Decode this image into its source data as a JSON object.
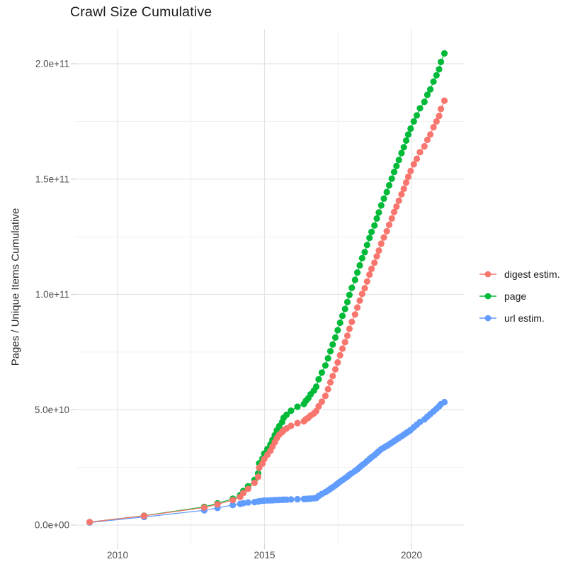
{
  "page": {
    "title": "Crawl Size Cumulative"
  },
  "chart_data": {
    "type": "line",
    "title": "Crawl Size Cumulative",
    "xlabel": "",
    "ylabel": "Pages / Unique Items Cumulative",
    "values_unit": "1e9",
    "grid": true,
    "legend_position": "right",
    "xlim": [
      2008.6,
      2021.8
    ],
    "ylim": [
      0,
      215
    ],
    "x_ticks": {
      "major": [
        2010,
        2015,
        2020
      ],
      "minor": [
        2012.5,
        2017.5
      ],
      "labels": [
        "2010",
        "2015",
        "2020"
      ]
    },
    "y_ticks": {
      "major": [
        0,
        50,
        100,
        150,
        200
      ],
      "minor": [
        25,
        75,
        125,
        175
      ],
      "labels": [
        "0.0e+00",
        "5.0e+10",
        "1.0e+11",
        "1.5e+11",
        "2.0e+11"
      ]
    },
    "x": [
      2009.05,
      2010.9,
      2012.95,
      2013.4,
      2013.92,
      2014.17,
      2014.28,
      2014.44,
      2014.66,
      2014.78,
      2014.82,
      2014.93,
      2014.99,
      2015.1,
      2015.2,
      2015.27,
      2015.35,
      2015.42,
      2015.5,
      2015.6,
      2015.65,
      2015.75,
      2015.9,
      2016.12,
      2016.34,
      2016.41,
      2016.49,
      2016.57,
      2016.68,
      2016.76,
      2016.84,
      2016.95,
      2017.07,
      2017.16,
      2017.24,
      2017.32,
      2017.41,
      2017.49,
      2017.57,
      2017.65,
      2017.74,
      2017.82,
      2017.89,
      2017.97,
      2018.08,
      2018.16,
      2018.24,
      2018.32,
      2018.41,
      2018.49,
      2018.57,
      2018.64,
      2018.74,
      2018.82,
      2018.89,
      2018.97,
      2019.06,
      2019.16,
      2019.24,
      2019.33,
      2019.41,
      2019.49,
      2019.57,
      2019.66,
      2019.74,
      2019.82,
      2019.89,
      2019.97,
      2020.08,
      2020.18,
      2020.29,
      2020.44,
      2020.54,
      2020.64,
      2020.75,
      2020.85,
      2020.94,
      2021.0,
      2021.12
    ],
    "series": [
      {
        "name": "digest estim.",
        "color": "#f8766d",
        "values": [
          1.3,
          4.0,
          7.6,
          9.0,
          10.8,
          12.2,
          13.9,
          15.7,
          18.3,
          20.9,
          24.9,
          26.7,
          28.7,
          30.5,
          32.2,
          34.0,
          35.9,
          37.7,
          39.2,
          40.3,
          41.1,
          41.9,
          43.0,
          44.2,
          45.0,
          45.9,
          46.5,
          47.5,
          48.4,
          49.4,
          51.5,
          53.5,
          56.0,
          58.9,
          61.9,
          64.6,
          67.5,
          70.5,
          73.6,
          76.5,
          79.3,
          82.1,
          85.1,
          88.1,
          91.3,
          94.3,
          97.3,
          100.2,
          102.7,
          105.6,
          108.6,
          111.1,
          113.7,
          116.5,
          119.0,
          122.0,
          124.7,
          127.4,
          130.2,
          132.9,
          135.7,
          138.1,
          140.6,
          143.4,
          145.8,
          148.5,
          151.0,
          153.5,
          156.4,
          158.8,
          161.7,
          164.2,
          167.0,
          169.3,
          172.5,
          175.0,
          177.4,
          180.4,
          184.0
        ]
      },
      {
        "name": "page",
        "color": "#00ba38",
        "values": [
          1.3,
          4.1,
          7.9,
          9.4,
          11.4,
          13.0,
          14.8,
          16.8,
          19.6,
          22.4,
          26.8,
          28.8,
          31.0,
          33.0,
          34.9,
          36.9,
          39.0,
          41.1,
          42.9,
          44.7,
          46.5,
          47.8,
          49.6,
          51.3,
          52.5,
          53.9,
          55.0,
          56.7,
          58.3,
          60.0,
          63.2,
          66.1,
          69.2,
          72.3,
          75.4,
          78.3,
          81.3,
          84.5,
          87.7,
          90.7,
          93.7,
          96.7,
          99.8,
          102.9,
          106.3,
          109.5,
          112.6,
          115.7,
          118.3,
          121.4,
          124.5,
          127.1,
          129.9,
          132.9,
          135.5,
          138.6,
          141.5,
          144.4,
          147.3,
          150.2,
          153.1,
          155.7,
          158.3,
          161.3,
          163.8,
          166.7,
          169.3,
          171.9,
          175.0,
          177.6,
          180.7,
          183.5,
          186.5,
          188.9,
          192.3,
          195.0,
          197.6,
          200.8,
          204.5
        ]
      },
      {
        "name": "url estim.",
        "color": "#619cff",
        "values": [
          1.1,
          3.5,
          6.4,
          7.4,
          8.7,
          9.2,
          9.5,
          9.8,
          10.0,
          10.2,
          10.35,
          10.5,
          10.6,
          10.65,
          10.7,
          10.75,
          10.8,
          10.85,
          10.9,
          10.95,
          11.0,
          11.0,
          11.1,
          11.2,
          11.3,
          11.35,
          11.4,
          11.5,
          11.6,
          11.7,
          12.6,
          13.5,
          14.3,
          15.0,
          15.7,
          16.4,
          17.2,
          18.0,
          18.8,
          19.5,
          20.3,
          21.0,
          21.8,
          22.5,
          23.4,
          24.2,
          25.1,
          26.0,
          26.8,
          27.7,
          28.6,
          29.4,
          30.3,
          31.2,
          32.0,
          32.9,
          33.6,
          34.3,
          35.0,
          35.7,
          36.4,
          37.1,
          37.8,
          38.5,
          39.2,
          39.9,
          40.5,
          41.2,
          42.4,
          43.5,
          44.7,
          45.8,
          47.0,
          48.1,
          49.3,
          50.4,
          51.5,
          52.4,
          53.3
        ]
      }
    ],
    "style": {
      "grid_major_color": "#e4e4e4",
      "grid_minor_color": "#f1f1f1",
      "tick_color": "#d4d4d4",
      "tick_label_color": "#4d4d4d",
      "background": "#ffffff"
    }
  }
}
